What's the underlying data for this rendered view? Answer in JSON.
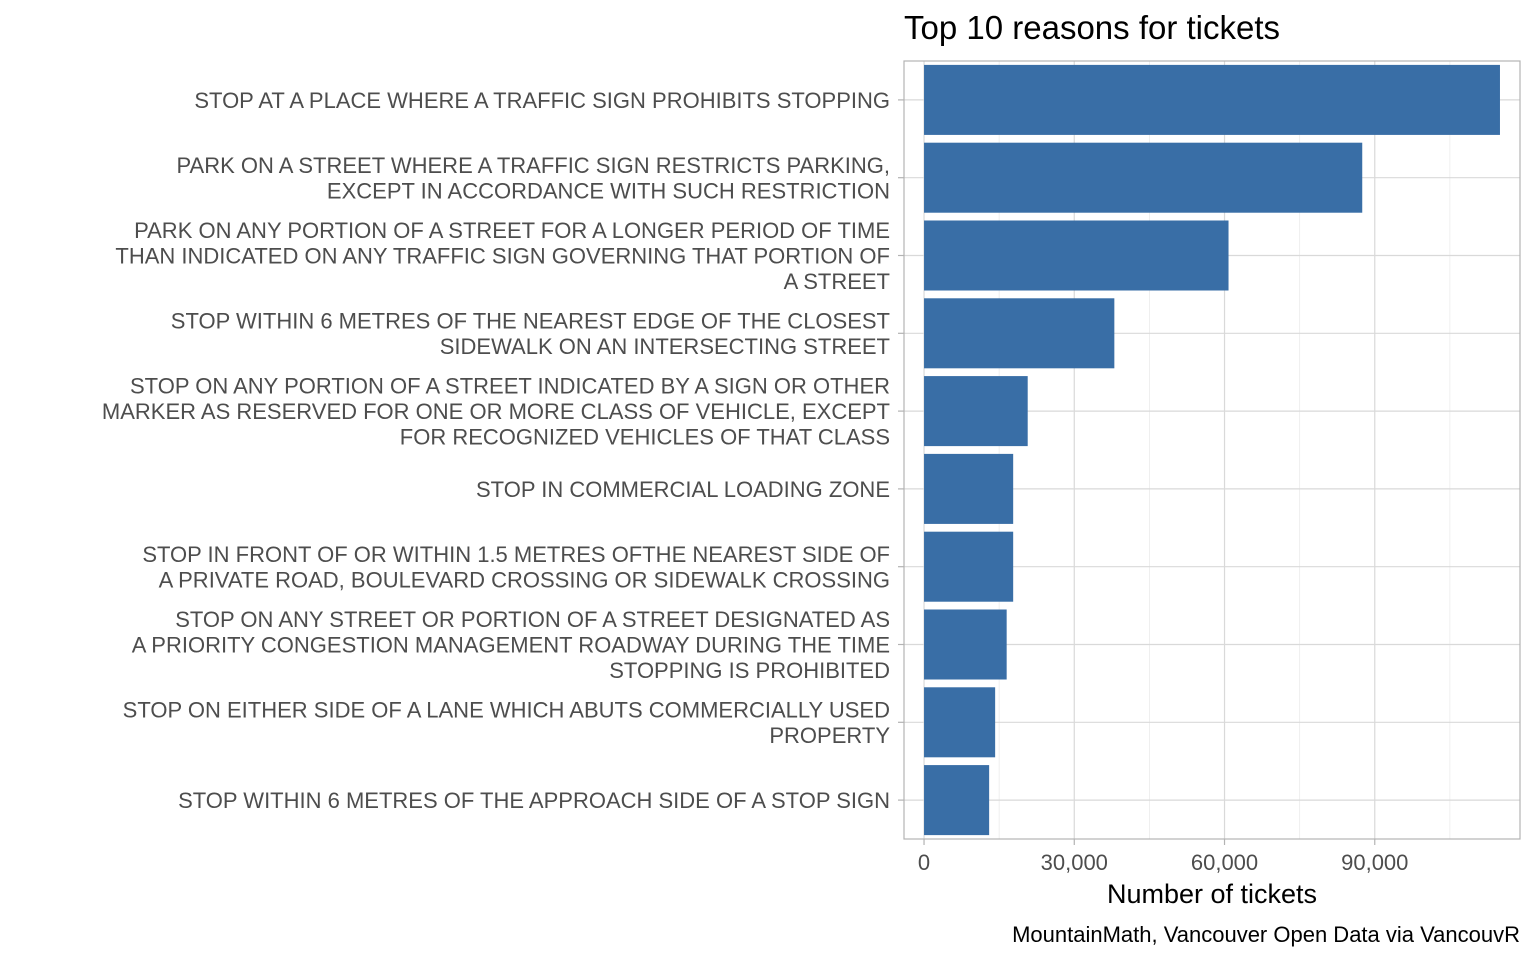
{
  "chart_data": {
    "type": "bar",
    "orientation": "horizontal",
    "title": "Top 10 reasons for tickets",
    "xlabel": "Number of tickets",
    "ylabel": "",
    "caption": "MountainMath, Vancouver Open Data via VancouvR",
    "xlim": [
      -4000,
      119000
    ],
    "xticks": [
      0,
      30000,
      60000,
      90000
    ],
    "xtick_labels": [
      "0",
      "30,000",
      "60,000",
      "90,000"
    ],
    "grid": true,
    "legend": "none",
    "bar_color": "#396EA6",
    "categories": [
      [
        "STOP AT A PLACE WHERE A TRAFFIC SIGN PROHIBITS STOPPING"
      ],
      [
        "PARK ON A STREET WHERE A TRAFFIC SIGN RESTRICTS PARKING,",
        "EXCEPT IN ACCORDANCE WITH SUCH RESTRICTION"
      ],
      [
        "PARK ON ANY PORTION OF A STREET FOR A LONGER PERIOD OF TIME",
        "THAN INDICATED ON ANY TRAFFIC SIGN GOVERNING THAT PORTION OF",
        "A STREET"
      ],
      [
        "STOP WITHIN 6 METRES OF THE NEAREST EDGE OF THE CLOSEST",
        "SIDEWALK ON AN INTERSECTING STREET"
      ],
      [
        "STOP ON ANY PORTION OF A STREET INDICATED BY A SIGN OR OTHER",
        "MARKER AS RESERVED FOR ONE OR MORE CLASS OF VEHICLE, EXCEPT",
        "FOR RECOGNIZED VEHICLES OF THAT CLASS"
      ],
      [
        "STOP IN COMMERCIAL LOADING ZONE"
      ],
      [
        "STOP IN FRONT OF OR WITHIN 1.5 METRES OFTHE NEAREST SIDE OF",
        "A PRIVATE ROAD, BOULEVARD CROSSING OR SIDEWALK CROSSING"
      ],
      [
        "STOP ON ANY STREET OR PORTION OF A STREET DESIGNATED AS",
        "A PRIORITY CONGESTION MANAGEMENT ROADWAY DURING THE TIME",
        "STOPPING IS PROHIBITED"
      ],
      [
        "STOP ON EITHER SIDE OF A LANE WHICH ABUTS COMMERCIALLY USED",
        "PROPERTY"
      ],
      [
        "STOP WITHIN 6 METRES OF THE APPROACH SIDE OF A STOP SIGN"
      ]
    ],
    "values": [
      115000,
      87500,
      60800,
      38000,
      20700,
      17800,
      17800,
      16500,
      14200,
      13000
    ]
  }
}
